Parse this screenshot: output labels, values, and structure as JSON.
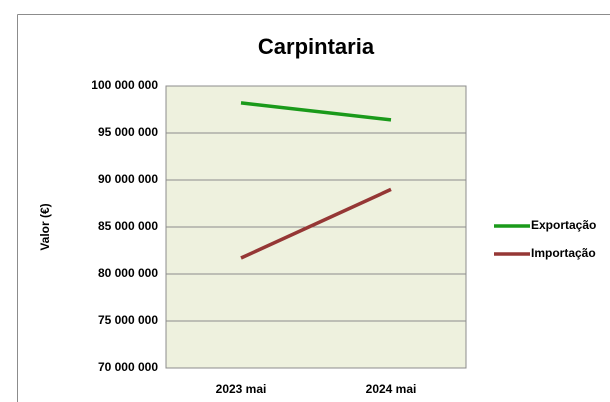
{
  "chart_data": {
    "type": "line",
    "title": "Carpintaria",
    "y_label": "Valor (€)",
    "categories": [
      "2023 mai",
      "2024 mai"
    ],
    "series": [
      {
        "name": "Exportação",
        "color": "#1a9a1a",
        "values": [
          98200000,
          96400000
        ]
      },
      {
        "name": "Importação",
        "color": "#953735",
        "values": [
          81700000,
          89000000
        ]
      }
    ],
    "ylim": [
      70000000,
      100000000
    ],
    "yticks": [
      {
        "value": 70000000,
        "label": "70 000 000"
      },
      {
        "value": 75000000,
        "label": "75 000 000"
      },
      {
        "value": 80000000,
        "label": "80 000 000"
      },
      {
        "value": 85000000,
        "label": "85 000 000"
      },
      {
        "value": 90000000,
        "label": "90 000 000"
      },
      {
        "value": 95000000,
        "label": "95 000 000"
      },
      {
        "value": 100000000,
        "label": "100 000 000"
      }
    ],
    "grid": true,
    "legend": "right"
  }
}
